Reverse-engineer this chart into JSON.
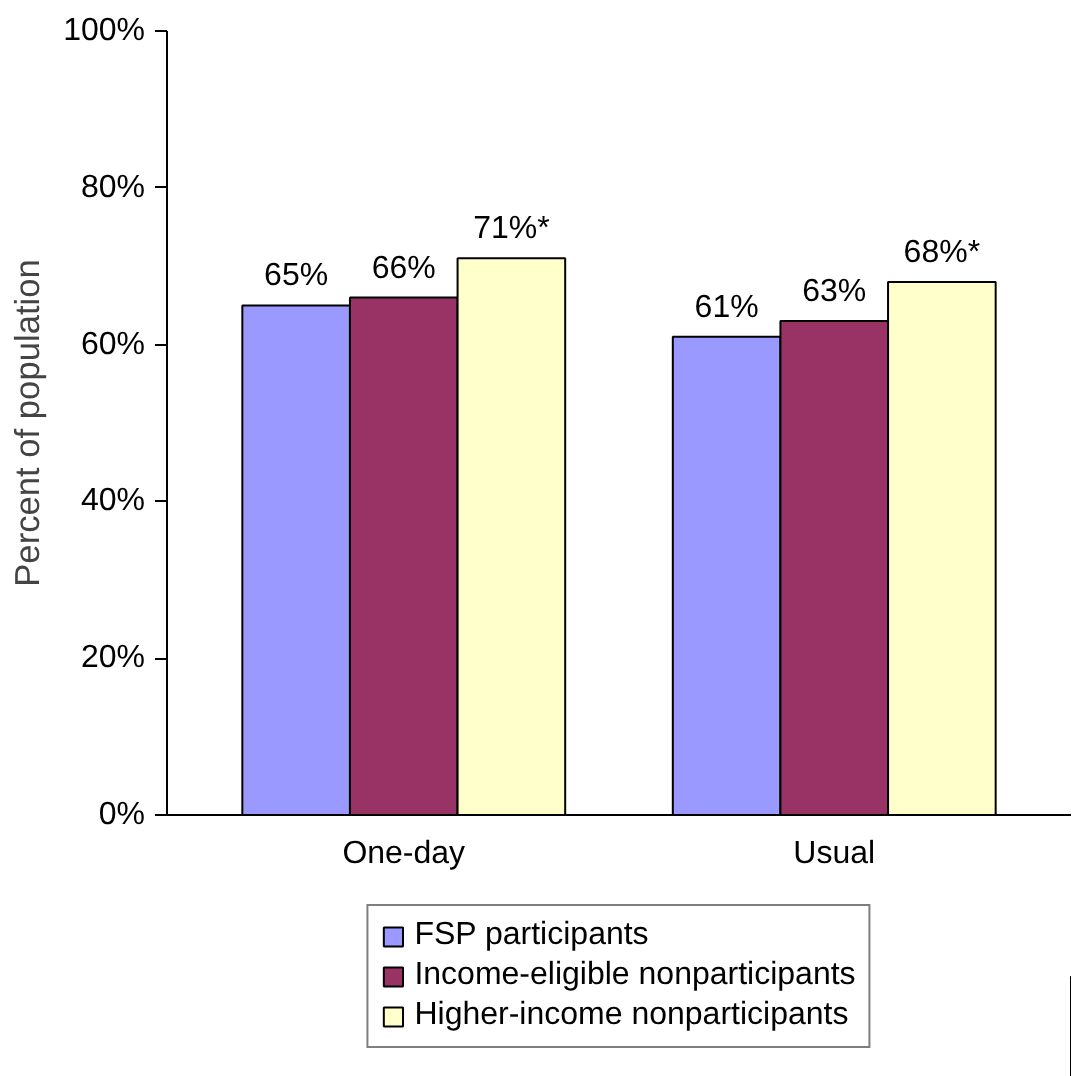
{
  "chart_data": {
    "type": "bar",
    "ylabel": "Percent of population",
    "categories": [
      "One-day",
      "Usual"
    ],
    "series": [
      {
        "name": "FSP participants",
        "color": "#9999ff",
        "values": [
          65,
          61
        ],
        "value_labels": [
          "65%",
          "61%"
        ]
      },
      {
        "name": "Income-eligible nonparticipants",
        "color": "#993366",
        "values": [
          66,
          63
        ],
        "value_labels": [
          "66%",
          "63%"
        ]
      },
      {
        "name": "Higher-income nonparticipants",
        "color": "#ffffcc",
        "values": [
          71,
          68
        ],
        "value_labels": [
          "71%*",
          "68%*"
        ]
      }
    ],
    "ylim": [
      0,
      100
    ],
    "yticks": [
      {
        "value": 0,
        "label": "0%"
      },
      {
        "value": 20,
        "label": "20%"
      },
      {
        "value": 40,
        "label": "40%"
      },
      {
        "value": 60,
        "label": "60%"
      },
      {
        "value": 80,
        "label": "80%"
      },
      {
        "value": 100,
        "label": "100%"
      }
    ],
    "grid": false,
    "legend": "bottom"
  }
}
